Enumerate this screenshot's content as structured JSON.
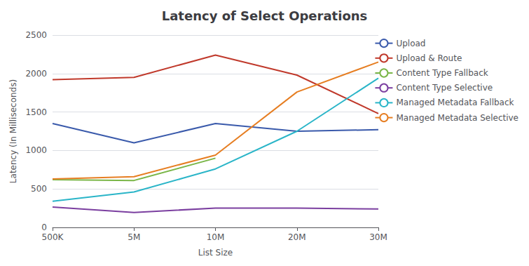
{
  "chart_data": {
    "type": "line",
    "title": "Latency of Select Operations",
    "xlabel": "List Size",
    "ylabel": "Latency (In Milliseconds)",
    "categories": [
      "500K",
      "5M",
      "10M",
      "20M",
      "30M"
    ],
    "series": [
      {
        "name": "Upload",
        "color": "#3a5aab",
        "values": [
          1350,
          1100,
          1350,
          1250,
          1270
        ]
      },
      {
        "name": "Upload & Route",
        "color": "#c0392b",
        "values": [
          1920,
          1950,
          2240,
          1980,
          1480
        ]
      },
      {
        "name": "Content Type Fallback",
        "color": "#7ab648",
        "values": [
          620,
          610,
          900,
          null,
          null
        ]
      },
      {
        "name": "Content Type Selective",
        "color": "#7b3fa0",
        "values": [
          265,
          195,
          250,
          250,
          240
        ]
      },
      {
        "name": "Managed Metadata Fallback",
        "color": "#2ab5c8",
        "values": [
          340,
          460,
          760,
          1250,
          1940
        ]
      },
      {
        "name": "Managed Metadata Selective",
        "color": "#e67e22",
        "values": [
          630,
          660,
          940,
          1760,
          2150
        ]
      }
    ],
    "ylim": [
      0,
      2500
    ],
    "yticks": [
      0,
      500,
      1000,
      1500,
      2000,
      2500
    ],
    "grid": true,
    "legend": "right"
  }
}
